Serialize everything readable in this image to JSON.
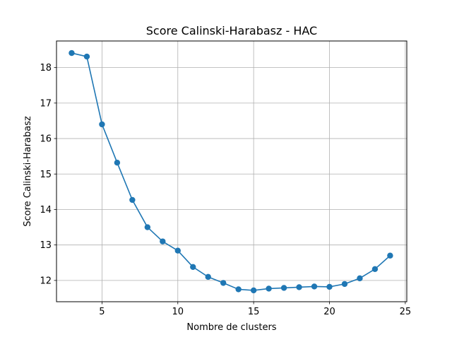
{
  "chart_data": {
    "type": "line",
    "title": "Score Calinski-Harabasz - HAC",
    "xlabel": "Nombre de clusters",
    "ylabel": "Score Calinski-Harabasz",
    "xlim": [
      2.0,
      25.1
    ],
    "ylim": [
      11.4,
      18.75
    ],
    "xticks": [
      5,
      10,
      15,
      20,
      25
    ],
    "yticks": [
      12,
      13,
      14,
      15,
      16,
      17,
      18
    ],
    "grid": true,
    "legend": "none",
    "series": [
      {
        "color": "#1f77b4",
        "marker": "circle",
        "x": [
          3,
          4,
          5,
          6,
          7,
          8,
          9,
          10,
          11,
          12,
          13,
          14,
          15,
          16,
          17,
          18,
          19,
          20,
          21,
          22,
          23,
          24
        ],
        "y": [
          18.41,
          18.31,
          16.4,
          15.32,
          14.27,
          13.5,
          13.1,
          12.84,
          12.38,
          12.1,
          11.93,
          11.75,
          11.72,
          11.77,
          11.79,
          11.81,
          11.83,
          11.82,
          11.9,
          12.06,
          12.32,
          12.7
        ]
      }
    ]
  }
}
